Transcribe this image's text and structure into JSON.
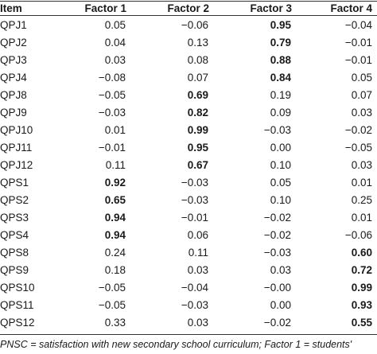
{
  "table": {
    "headers": [
      "Item",
      "Factor 1",
      "Factor 2",
      "Factor 3",
      "Factor 4"
    ],
    "rows": [
      {
        "item": "QPJ1",
        "values": [
          "0.05",
          "−0.06",
          "0.95",
          "−0.04"
        ],
        "bold": [
          false,
          false,
          true,
          false
        ]
      },
      {
        "item": "QPJ2",
        "values": [
          "0.04",
          "0.13",
          "0.79",
          "−0.01"
        ],
        "bold": [
          false,
          false,
          true,
          false
        ]
      },
      {
        "item": "QPJ3",
        "values": [
          "0.03",
          "0.08",
          "0.88",
          "−0.01"
        ],
        "bold": [
          false,
          false,
          true,
          false
        ]
      },
      {
        "item": "QPJ4",
        "values": [
          "−0.08",
          "0.07",
          "0.84",
          "0.05"
        ],
        "bold": [
          false,
          false,
          true,
          false
        ]
      },
      {
        "item": "QPJ8",
        "values": [
          "−0.05",
          "0.69",
          "0.19",
          "0.07"
        ],
        "bold": [
          false,
          true,
          false,
          false
        ]
      },
      {
        "item": "QPJ9",
        "values": [
          "−0.03",
          "0.82",
          "0.09",
          "0.03"
        ],
        "bold": [
          false,
          true,
          false,
          false
        ]
      },
      {
        "item": "QPJ10",
        "values": [
          "0.01",
          "0.99",
          "−0.03",
          "−0.02"
        ],
        "bold": [
          false,
          true,
          false,
          false
        ]
      },
      {
        "item": "QPJ11",
        "values": [
          "−0.01",
          "0.95",
          "0.00",
          "−0.05"
        ],
        "bold": [
          false,
          true,
          false,
          false
        ]
      },
      {
        "item": "QPJ12",
        "values": [
          "0.11",
          "0.67",
          "0.10",
          "0.03"
        ],
        "bold": [
          false,
          true,
          false,
          false
        ]
      },
      {
        "item": "QPS1",
        "values": [
          "0.92",
          "−0.03",
          "0.05",
          "0.01"
        ],
        "bold": [
          true,
          false,
          false,
          false
        ]
      },
      {
        "item": "QPS2",
        "values": [
          "0.65",
          "−0.03",
          "0.10",
          "0.25"
        ],
        "bold": [
          true,
          false,
          false,
          false
        ]
      },
      {
        "item": "QPS3",
        "values": [
          "0.94",
          "−0.01",
          "−0.02",
          "0.01"
        ],
        "bold": [
          true,
          false,
          false,
          false
        ]
      },
      {
        "item": "QPS4",
        "values": [
          "0.94",
          "0.06",
          "−0.02",
          "−0.06"
        ],
        "bold": [
          true,
          false,
          false,
          false
        ]
      },
      {
        "item": "QPS8",
        "values": [
          "0.24",
          "0.11",
          "−0.03",
          "0.60"
        ],
        "bold": [
          false,
          false,
          false,
          true
        ]
      },
      {
        "item": "QPS9",
        "values": [
          "0.18",
          "0.03",
          "0.03",
          "0.72"
        ],
        "bold": [
          false,
          false,
          false,
          true
        ]
      },
      {
        "item": "QPS10",
        "values": [
          "−0.05",
          "−0.04",
          "−0.00",
          "0.99"
        ],
        "bold": [
          false,
          false,
          false,
          true
        ]
      },
      {
        "item": "QPS11",
        "values": [
          "−0.05",
          "−0.03",
          "0.00",
          "0.93"
        ],
        "bold": [
          false,
          false,
          false,
          true
        ]
      },
      {
        "item": "QPS12",
        "values": [
          "0.33",
          "0.03",
          "−0.02",
          "0.55"
        ],
        "bold": [
          false,
          false,
          false,
          true
        ]
      }
    ]
  },
  "footnote": "PNSC = satisfaction with new secondary school curriculum; Factor 1 = students'"
}
